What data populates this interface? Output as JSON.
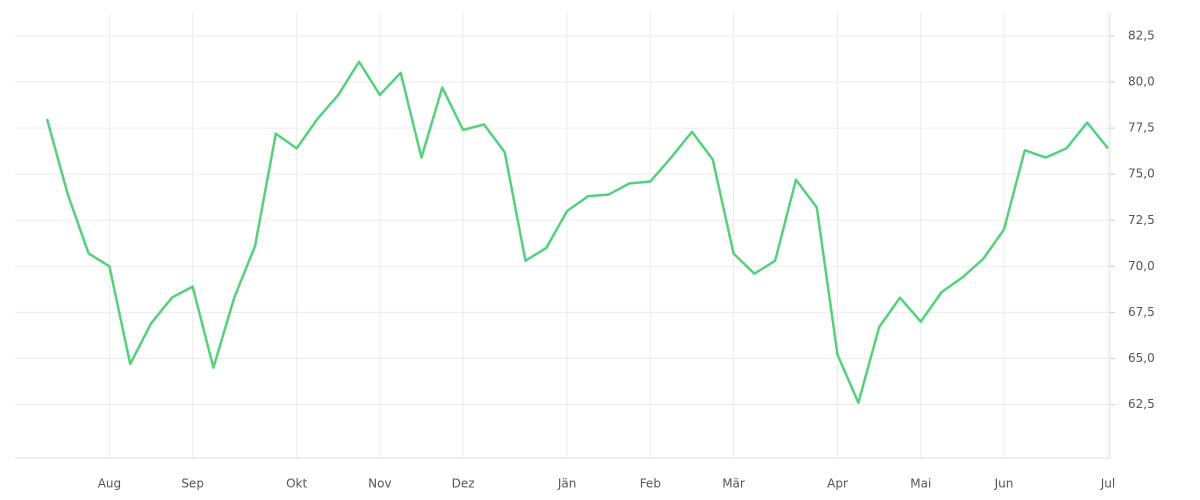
{
  "chart_data": {
    "type": "line",
    "color": "#55d17c",
    "grid": true,
    "categories": [
      null,
      null,
      null,
      "Aug",
      null,
      null,
      null,
      "Sep",
      null,
      null,
      null,
      null,
      "Okt",
      null,
      null,
      null,
      "Nov",
      null,
      null,
      null,
      "Dez",
      null,
      null,
      null,
      null,
      "Jän",
      null,
      null,
      null,
      "Feb",
      null,
      null,
      null,
      "Mär",
      null,
      null,
      null,
      null,
      "Apr",
      null,
      null,
      null,
      "Mai",
      null,
      null,
      null,
      "Jun",
      null,
      null,
      null,
      null,
      "Jul"
    ],
    "values": [
      78.0,
      73.9,
      70.7,
      70.0,
      64.7,
      66.9,
      68.3,
      68.9,
      64.5,
      68.3,
      71.1,
      77.2,
      76.4,
      78.0,
      79.3,
      81.1,
      79.3,
      80.5,
      75.9,
      79.7,
      77.4,
      77.7,
      76.2,
      70.3,
      71.0,
      73.0,
      73.8,
      73.9,
      74.5,
      74.6,
      75.9,
      77.3,
      75.8,
      70.7,
      69.6,
      70.3,
      74.7,
      73.2,
      65.2,
      62.6,
      66.7,
      68.3,
      67.0,
      68.6,
      69.4,
      70.4,
      72.0,
      76.3,
      75.9,
      76.4,
      77.8,
      76.4
    ],
    "ylim": [
      59.6,
      83.8
    ],
    "yticks": [
      {
        "value": 62.5,
        "label": "62,5"
      },
      {
        "value": 65,
        "label": "65,0"
      },
      {
        "value": 67.5,
        "label": "67,5"
      },
      {
        "value": 70,
        "label": "70,0"
      },
      {
        "value": 72.5,
        "label": "72,5"
      },
      {
        "value": 75,
        "label": "75,0"
      },
      {
        "value": 77.5,
        "label": "77,5"
      },
      {
        "value": 80,
        "label": "80,0"
      },
      {
        "value": 82.5,
        "label": "82,5"
      }
    ]
  }
}
